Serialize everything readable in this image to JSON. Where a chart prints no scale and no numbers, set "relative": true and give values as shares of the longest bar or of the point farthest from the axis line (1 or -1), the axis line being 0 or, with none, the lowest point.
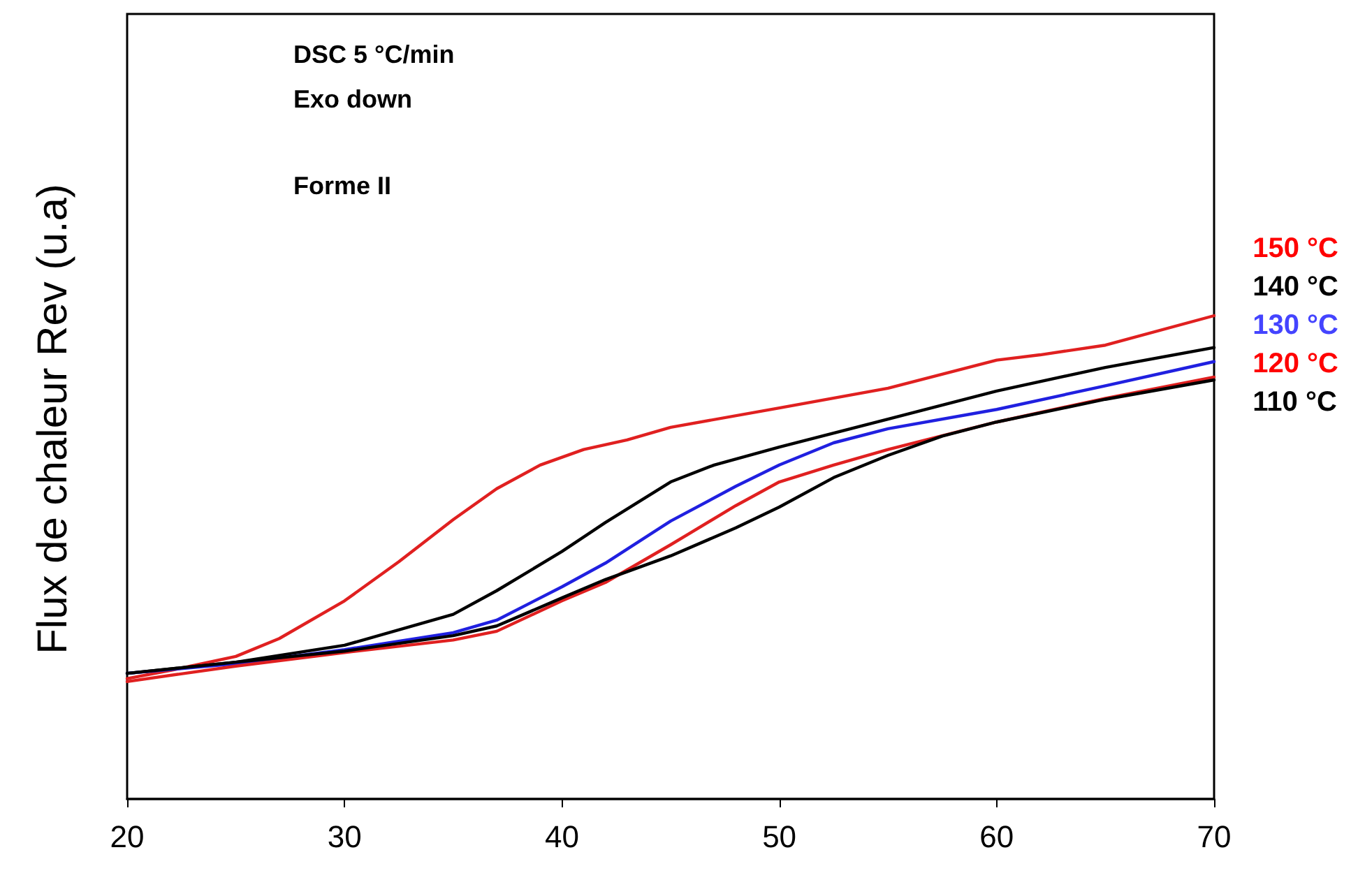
{
  "chart_data": {
    "type": "line",
    "relative": true,
    "ylabel": "Flux de chaleur Rev (u.a)",
    "annotations": [
      "DSC 5 °C/min",
      "Exo down",
      "Forme II"
    ],
    "xlim": [
      20,
      70
    ],
    "xticks": [
      20,
      30,
      40,
      50,
      60,
      70
    ],
    "grid": false,
    "legend": "right",
    "marker": "none",
    "line_style": "solid",
    "series": [
      {
        "name": "150 °C",
        "color": "#e02020",
        "x": [
          20,
          22,
          25,
          27,
          30,
          32.5,
          35,
          37,
          39,
          41,
          43,
          45,
          50,
          55,
          60,
          62,
          65,
          70
        ],
        "values": [
          0.249,
          0.266,
          0.295,
          0.332,
          0.41,
          0.491,
          0.578,
          0.642,
          0.691,
          0.723,
          0.743,
          0.769,
          0.809,
          0.85,
          0.908,
          0.919,
          0.939,
          1
        ]
      },
      {
        "name": "140 °C",
        "color": "#000000",
        "x": [
          20,
          25,
          30,
          35,
          37,
          40,
          42,
          45,
          47,
          50,
          55,
          60,
          65,
          70
        ],
        "values": [
          0.26,
          0.283,
          0.318,
          0.382,
          0.431,
          0.512,
          0.572,
          0.656,
          0.691,
          0.728,
          0.786,
          0.844,
          0.893,
          0.934
        ]
      },
      {
        "name": "130 °C",
        "color": "#2020e0",
        "x": [
          20,
          25,
          30,
          35,
          37,
          40,
          42,
          45,
          48,
          50,
          52.5,
          55,
          60,
          65,
          70
        ],
        "values": [
          0.26,
          0.28,
          0.309,
          0.344,
          0.37,
          0.439,
          0.488,
          0.575,
          0.647,
          0.691,
          0.737,
          0.766,
          0.806,
          0.855,
          0.905
        ]
      },
      {
        "name": "120 °C",
        "color": "#e02020",
        "x": [
          20,
          25,
          30,
          35,
          37,
          40,
          42,
          45,
          48,
          50,
          52.5,
          55,
          60,
          65,
          70
        ],
        "values": [
          0.243,
          0.275,
          0.303,
          0.329,
          0.347,
          0.41,
          0.448,
          0.526,
          0.607,
          0.656,
          0.691,
          0.723,
          0.78,
          0.829,
          0.873
        ]
      },
      {
        "name": "110 °C",
        "color": "#000000",
        "x": [
          20,
          25,
          30,
          35,
          37,
          40,
          42,
          45,
          48,
          50,
          52.5,
          55,
          57.5,
          60,
          65,
          70
        ],
        "values": [
          0.26,
          0.283,
          0.306,
          0.338,
          0.358,
          0.416,
          0.454,
          0.503,
          0.561,
          0.604,
          0.665,
          0.711,
          0.751,
          0.78,
          0.827,
          0.867
        ]
      }
    ]
  }
}
